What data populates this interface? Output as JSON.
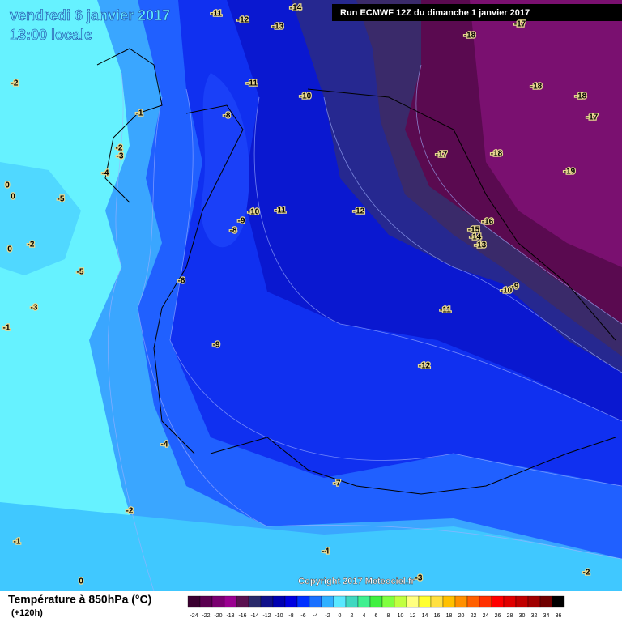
{
  "header": {
    "date": "vendredi 6 janvier 2017",
    "time": "13:00 locale",
    "run": "Run ECMWF 12Z du dimanche 1 janvier 2017"
  },
  "map": {
    "labels": [
      -11,
      -12,
      -14,
      -13,
      -18,
      -17,
      -2,
      -11,
      -10,
      -18,
      -18,
      -17,
      -8,
      -1,
      -2,
      -3,
      -4,
      -17,
      -18,
      -19,
      0,
      0,
      -5,
      -10,
      -11,
      -12,
      -16,
      -9,
      -8,
      -15,
      -14,
      -13,
      -2,
      0,
      -5,
      -6,
      -10,
      -9,
      -3,
      -11,
      -1,
      -9,
      -12,
      -4,
      -7,
      -2,
      -1,
      -4,
      0,
      -3,
      -2
    ],
    "copyright": "Copyright 2017 Meteociel.fr"
  },
  "legend": {
    "title": "Température à 850hPa (°C)",
    "lead": "(+120h)",
    "ticks": [
      -24,
      -22,
      -20,
      -18,
      -16,
      -14,
      -12,
      -10,
      -8,
      -6,
      -4,
      -2,
      0,
      2,
      4,
      6,
      8,
      10,
      12,
      14,
      16,
      18,
      20,
      22,
      24,
      26,
      28,
      30,
      32,
      34,
      36
    ],
    "colors": [
      "#3a0030",
      "#5a0050",
      "#7a0070",
      "#9a0090",
      "#5a1050",
      "#2a2a6a",
      "#10108a",
      "#0000b0",
      "#0000e0",
      "#0030ff",
      "#1a70ff",
      "#30b0ff",
      "#5ae8ff",
      "#40d8c0",
      "#40f090",
      "#40f040",
      "#80ff40",
      "#c0ff40",
      "#ffff80",
      "#ffff30",
      "#ffe040",
      "#ffc000",
      "#ff9000",
      "#ff6000",
      "#ff3000",
      "#ff0000",
      "#e00000",
      "#c00000",
      "#a00000",
      "#700000",
      "#000000"
    ]
  }
}
